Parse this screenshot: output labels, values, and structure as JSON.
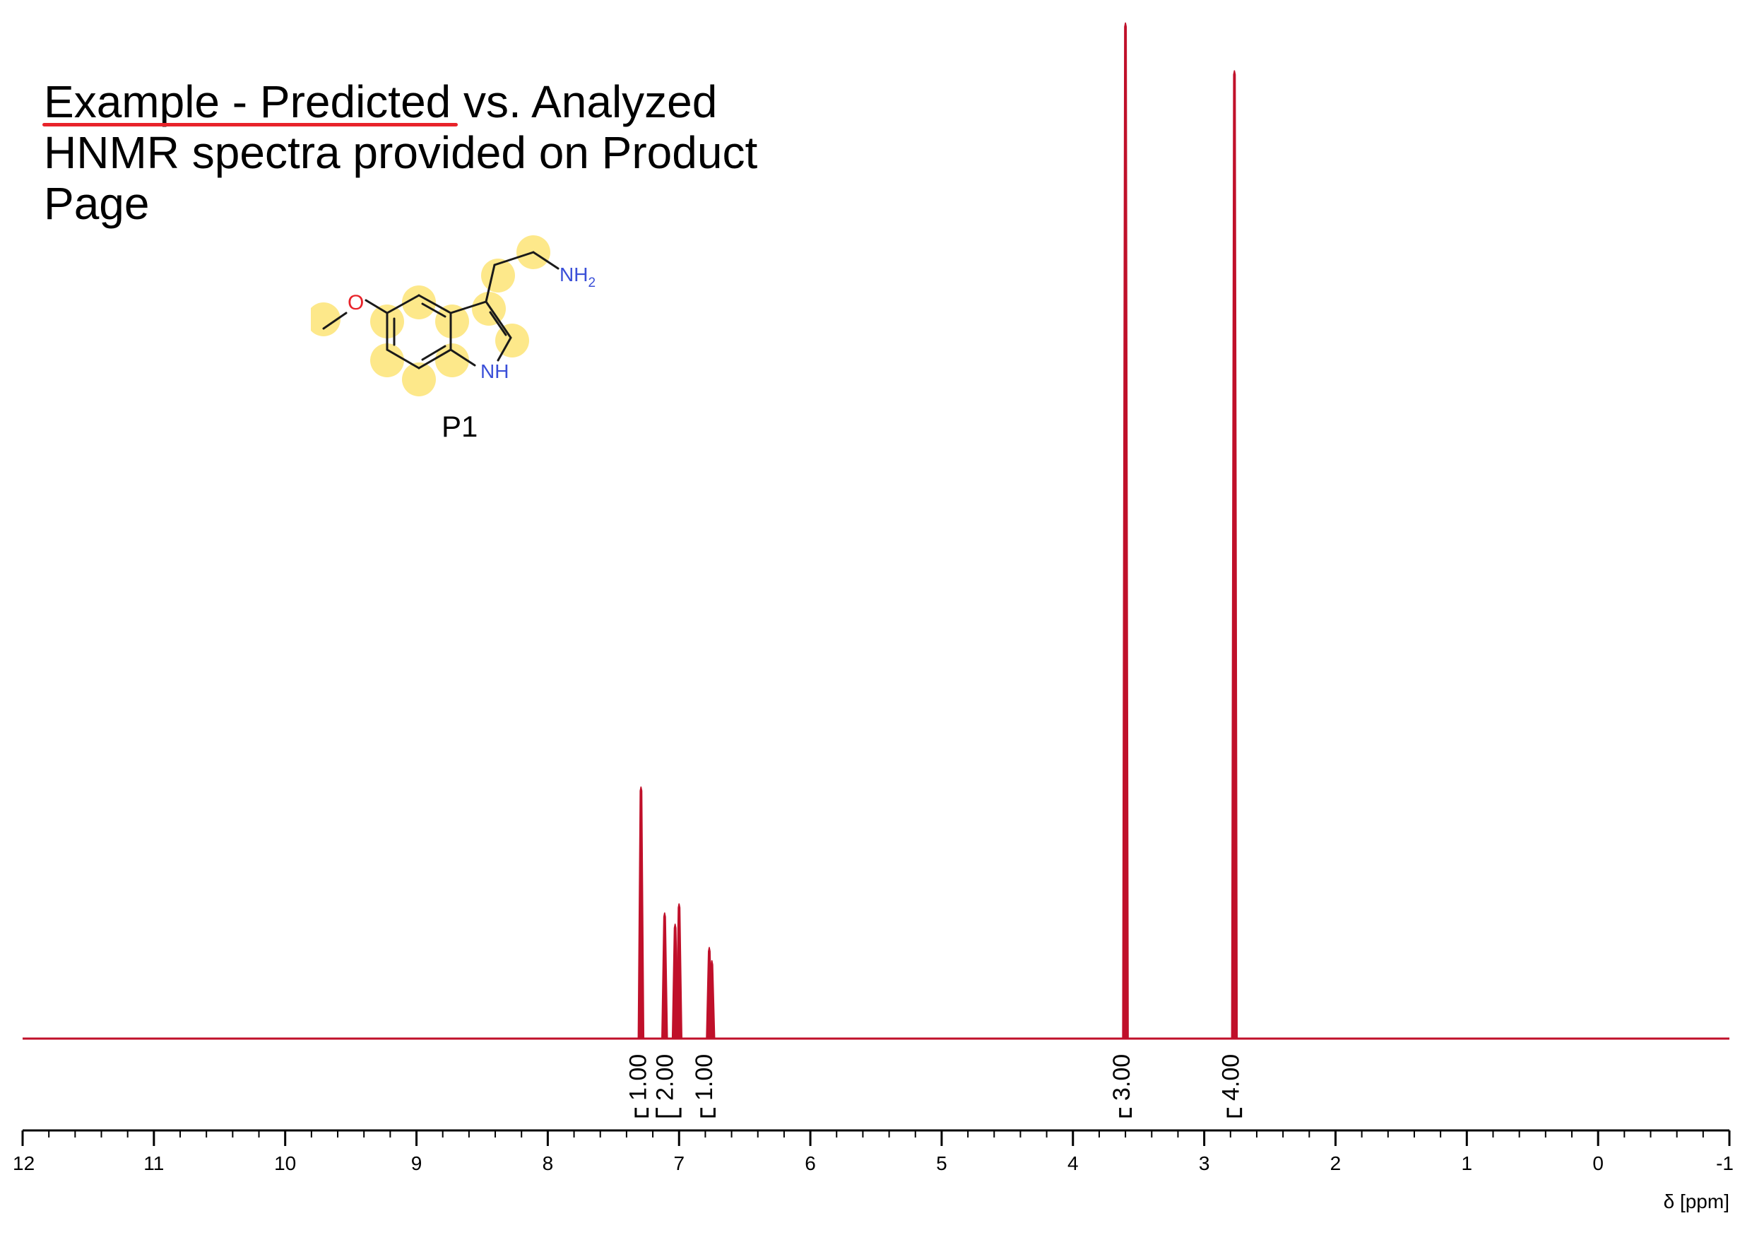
{
  "title_line1": "Example - Predicted vs. Analyzed",
  "title_line2": "HNMR spectra provided on Product",
  "title_line3": "Page",
  "compound_label": "P1",
  "molecule": {
    "atom_o": "O",
    "atom_nh2": "NH",
    "atom_nh2_sub": "2",
    "atom_nh": "NH"
  },
  "colors": {
    "spectrum": "#c0102a",
    "highlight": "#fde88a",
    "oxygen": "#e8232a",
    "nitrogen": "#3a4fd8",
    "underline": "#e8232a"
  },
  "chart_data": {
    "type": "line",
    "title": "",
    "xlabel": "δ [ppm]",
    "ylabel": "",
    "xlim": [
      12,
      -1
    ],
    "x_reversed": true,
    "x_ticks": [
      "12",
      "11",
      "10",
      "9",
      "8",
      "7",
      "6",
      "5",
      "4",
      "3",
      "2",
      "1",
      "0",
      "-1"
    ],
    "peaks": [
      {
        "ppm": 7.29,
        "height": 0.248
      },
      {
        "ppm": 7.11,
        "height": 0.124
      },
      {
        "ppm": 7.03,
        "height": 0.113
      },
      {
        "ppm": 7.0,
        "height": 0.133
      },
      {
        "ppm": 6.77,
        "height": 0.09
      },
      {
        "ppm": 6.75,
        "height": 0.077
      },
      {
        "ppm": 3.6,
        "height": 1.0
      },
      {
        "ppm": 2.77,
        "height": 0.953
      }
    ],
    "integrals": [
      {
        "label": "1.00",
        "from": 7.33,
        "to": 7.24
      },
      {
        "label": "2.00",
        "from": 7.17,
        "to": 6.99
      },
      {
        "label": "1.00",
        "from": 6.83,
        "to": 6.73
      },
      {
        "label": "3.00",
        "from": 3.64,
        "to": 3.56
      },
      {
        "label": "4.00",
        "from": 2.82,
        "to": 2.72
      }
    ]
  }
}
